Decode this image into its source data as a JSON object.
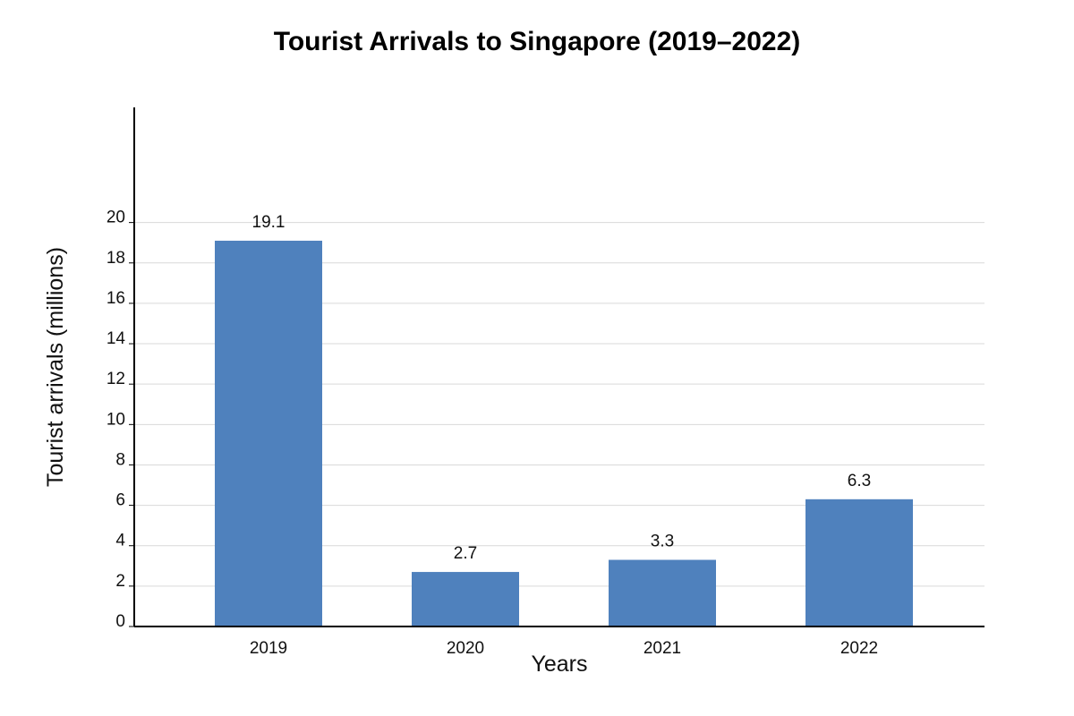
{
  "chart_data": {
    "type": "bar",
    "title": "Tourist Arrivals to Singapore (2019–2022)",
    "xlabel": "Years",
    "ylabel": "Tourist arrivals (millions)",
    "categories": [
      "2019",
      "2020",
      "2021",
      "2022"
    ],
    "values": [
      19.1,
      2.7,
      3.3,
      6.3
    ],
    "data_labels": [
      "19.1",
      "2.7",
      "3.3",
      "6.3"
    ],
    "yticks": [
      "0",
      "2",
      "4",
      "6",
      "8",
      "10",
      "12",
      "14",
      "16",
      "18",
      "20"
    ],
    "ylim": [
      0,
      25.7
    ],
    "grid": true,
    "bar_color": "#4f81bd"
  }
}
